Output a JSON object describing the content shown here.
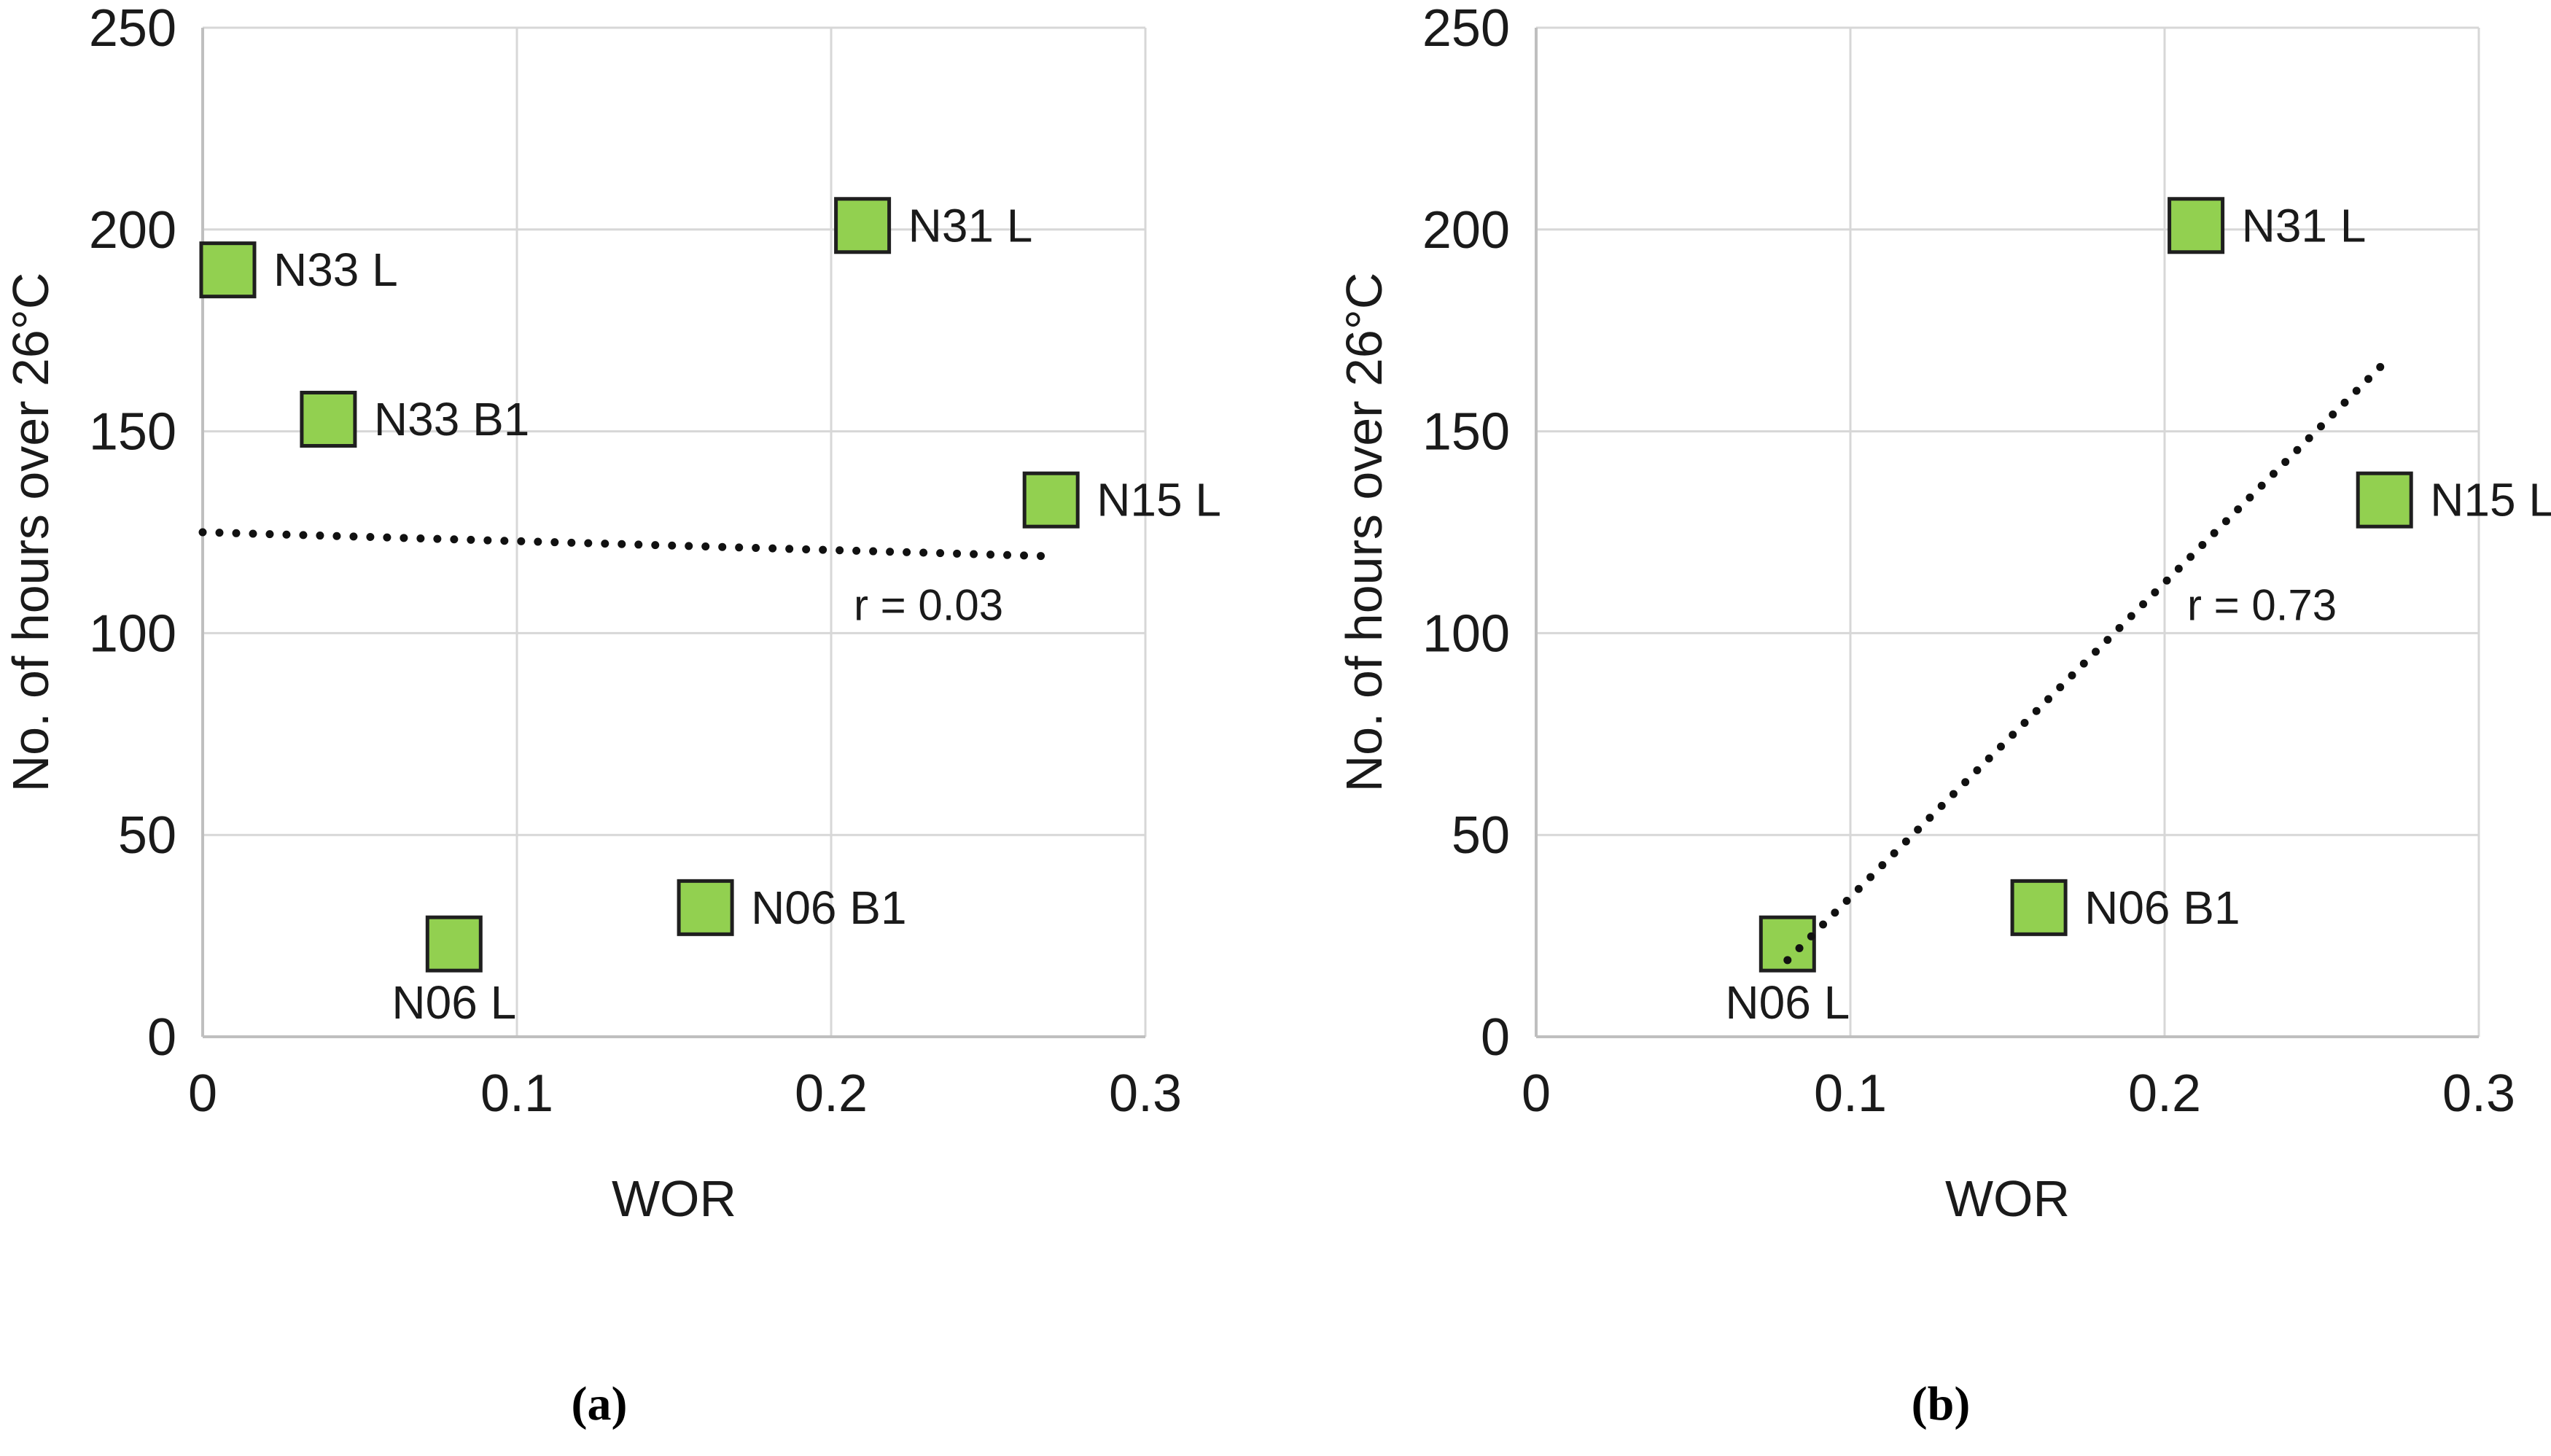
{
  "figure": {
    "captions": [
      "(a)",
      "(b)"
    ]
  },
  "styles": {
    "background": "#ffffff",
    "marker_fill": "#92D050",
    "marker_border": "#1f1f1f",
    "gridline": "#d7d7d7",
    "axis_line": "#bfbfbf",
    "text": "#1a1a1a",
    "trendline": "#111111"
  },
  "chart_data": [
    {
      "type": "scatter",
      "panel": "a",
      "title": "",
      "xlabel": "WOR",
      "ylabel": "No. of hours over 26°C",
      "xlim": [
        0,
        0.3
      ],
      "ylim": [
        0,
        250
      ],
      "xticks": [
        0,
        0.1,
        0.2,
        0.3
      ],
      "xtick_labels": [
        "0",
        "0.1",
        "0.2",
        "0.3"
      ],
      "yticks": [
        0,
        50,
        100,
        150,
        200,
        250
      ],
      "ytick_labels": [
        "0",
        "50",
        "100",
        "150",
        "200",
        "250"
      ],
      "grid": true,
      "legend": false,
      "marker": "square",
      "points": [
        {
          "label": "N33 L",
          "x": 0.008,
          "y": 190,
          "label_pos": "right"
        },
        {
          "label": "N33 B1",
          "x": 0.04,
          "y": 153,
          "label_pos": "right"
        },
        {
          "label": "N31 L",
          "x": 0.21,
          "y": 201,
          "label_pos": "right"
        },
        {
          "label": "N15 L",
          "x": 0.27,
          "y": 133,
          "label_pos": "right"
        },
        {
          "label": "N06 L",
          "x": 0.08,
          "y": 23,
          "label_pos": "below"
        },
        {
          "label": "N06 B1",
          "x": 0.16,
          "y": 32,
          "label_pos": "right"
        }
      ],
      "trendline": {
        "style": "dotted",
        "x1": 0.0,
        "y1": 125,
        "x2": 0.272,
        "y2": 119
      },
      "annotation": {
        "text": "r = 0.03",
        "x": 0.231,
        "y": 107
      }
    },
    {
      "type": "scatter",
      "panel": "b",
      "title": "",
      "xlabel": "WOR",
      "ylabel": "No. of hours over 26°C",
      "xlim": [
        0,
        0.3
      ],
      "ylim": [
        0,
        250
      ],
      "xticks": [
        0,
        0.1,
        0.2,
        0.3
      ],
      "xtick_labels": [
        "0",
        "0.1",
        "0.2",
        "0.3"
      ],
      "yticks": [
        0,
        50,
        100,
        150,
        200,
        250
      ],
      "ytick_labels": [
        "0",
        "50",
        "100",
        "150",
        "200",
        "250"
      ],
      "grid": true,
      "legend": false,
      "marker": "square",
      "points": [
        {
          "label": "N31 L",
          "x": 0.21,
          "y": 201,
          "label_pos": "right"
        },
        {
          "label": "N15 L",
          "x": 0.27,
          "y": 133,
          "label_pos": "right"
        },
        {
          "label": "N06 L",
          "x": 0.08,
          "y": 23,
          "label_pos": "below"
        },
        {
          "label": "N06 B1",
          "x": 0.16,
          "y": 32,
          "label_pos": "right"
        }
      ],
      "trendline": {
        "style": "dotted",
        "x1": 0.08,
        "y1": 19,
        "x2": 0.27,
        "y2": 167
      },
      "annotation": {
        "text": "r = 0.73",
        "x": 0.231,
        "y": 107
      }
    }
  ]
}
